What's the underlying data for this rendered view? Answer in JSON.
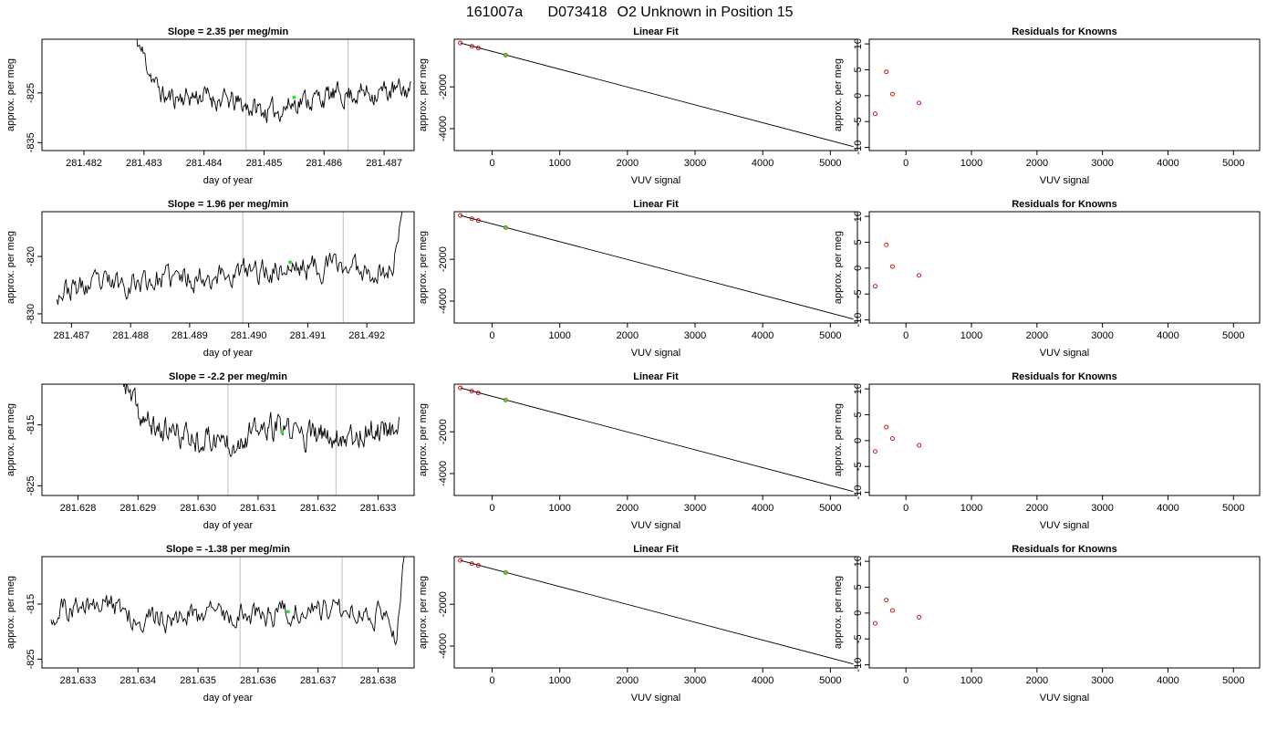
{
  "figure": {
    "title_parts": [
      "161007a",
      "D073418",
      "O2 Unknown in Position  15"
    ]
  },
  "chart_data": [
    {
      "type": "line",
      "panel": "timeseries",
      "row": 1,
      "title": "Slope =  2.35  per meg/min",
      "xlabel": "day of year",
      "ylabel": "approx. per meg",
      "xlim": [
        281.4813,
        281.4875
      ],
      "ylim": [
        -836.6,
        -814.2
      ],
      "xticks": [
        281.482,
        281.483,
        281.484,
        281.485,
        281.486,
        281.487
      ],
      "xtick_labels": [
        "281.482",
        "281.483",
        "281.484",
        "281.485",
        "281.486",
        "281.487"
      ],
      "yticks": [
        -825,
        -835
      ],
      "ytick_labels": [
        "-825",
        "-835"
      ],
      "vlines": [
        281.4847,
        281.4864
      ],
      "highlight_point": {
        "x": 281.4855,
        "y": -825.9
      },
      "series": [
        {
          "x_start": 281.4828,
          "x_end": 281.48745,
          "noise_seed": 11,
          "keyframes": [
            [
              0,
              -812
            ],
            [
              0.03,
              -816
            ],
            [
              0.06,
              -820
            ],
            [
              0.09,
              -824
            ],
            [
              0.12,
              -826
            ],
            [
              0.25,
              -825.5
            ],
            [
              0.4,
              -827.5
            ],
            [
              0.5,
              -829
            ],
            [
              0.6,
              -826.5
            ],
            [
              0.8,
              -825
            ],
            [
              1.0,
              -824.5
            ]
          ]
        }
      ],
      "grid": false
    },
    {
      "type": "line",
      "panel": "fit",
      "row": 1,
      "title": "Linear Fit",
      "xlabel": "VUV signal",
      "ylabel": "approx. per meg",
      "xlim": [
        -560,
        5400
      ],
      "ylim": [
        -5050,
        280
      ],
      "xticks": [
        0,
        1000,
        2000,
        3000,
        4000,
        5000
      ],
      "xtick_labels": [
        "0",
        "1000",
        "2000",
        "3000",
        "4000",
        "5000"
      ],
      "yticks": [
        -2000,
        -4000
      ],
      "ytick_labels": [
        "-2000",
        "-4000"
      ],
      "fit_line": {
        "x": [
          -470,
          5340
        ],
        "y": [
          100,
          -4860
        ]
      },
      "known_points": [
        {
          "x": -470,
          "y": 100
        },
        {
          "x": -300,
          "y": -55
        },
        {
          "x": -205,
          "y": -140
        },
        {
          "x": 200,
          "y": -480
        }
      ],
      "unknown_point": {
        "x": 200,
        "y": -480
      }
    },
    {
      "type": "scatter",
      "panel": "residuals",
      "row": 1,
      "title": "Residuals for Knowns",
      "xlabel": "VUV signal",
      "ylabel": "approx. per meg",
      "xlim": [
        -560,
        5400
      ],
      "ylim": [
        -10.6,
        10.9
      ],
      "xticks": [
        0,
        1000,
        2000,
        3000,
        4000,
        5000
      ],
      "xtick_labels": [
        "0",
        "1000",
        "2000",
        "3000",
        "4000",
        "5000"
      ],
      "yticks": [
        10,
        5,
        0,
        -5,
        -10
      ],
      "ytick_labels": [
        "10",
        "5",
        "0",
        "-5",
        "-10"
      ],
      "points": [
        {
          "x": -470,
          "y": -3.5
        },
        {
          "x": -300,
          "y": 4.6
        },
        {
          "x": -205,
          "y": 0.3
        },
        {
          "x": 200,
          "y": -1.4
        }
      ]
    },
    {
      "type": "line",
      "panel": "timeseries",
      "row": 2,
      "title": "Slope =  1.96  per meg/min",
      "xlabel": "day of year",
      "ylabel": "approx. per meg",
      "xlim": [
        281.4865,
        281.4928
      ],
      "ylim": [
        -831.6,
        -812.2
      ],
      "xticks": [
        281.487,
        281.488,
        281.489,
        281.49,
        281.491,
        281.492
      ],
      "xtick_labels": [
        "281.487",
        "281.488",
        "281.489",
        "281.490",
        "281.491",
        "281.492"
      ],
      "yticks": [
        -820,
        -830
      ],
      "ytick_labels": [
        "-820",
        "-830"
      ],
      "vlines": [
        281.4899,
        281.4916
      ],
      "highlight_point": {
        "x": 281.4907,
        "y": -821.0
      },
      "series": [
        {
          "x_start": 281.48675,
          "x_end": 281.49265,
          "noise_seed": 23,
          "keyframes": [
            [
              0,
              -826
            ],
            [
              0.2,
              -824.5
            ],
            [
              0.4,
              -823.5
            ],
            [
              0.6,
              -822.5
            ],
            [
              0.8,
              -821.5
            ],
            [
              0.92,
              -822.5
            ],
            [
              0.95,
              -823
            ],
            [
              0.965,
              -821
            ],
            [
              0.98,
              -817
            ],
            [
              0.99,
              -814
            ],
            [
              1.0,
              -810
            ]
          ]
        }
      ],
      "grid": false
    },
    {
      "type": "line",
      "panel": "fit",
      "row": 2,
      "title": "Linear Fit",
      "xlabel": "VUV signal",
      "ylabel": "approx. per meg",
      "xlim": [
        -560,
        5400
      ],
      "ylim": [
        -5050,
        280
      ],
      "xticks": [
        0,
        1000,
        2000,
        3000,
        4000,
        5000
      ],
      "xtick_labels": [
        "0",
        "1000",
        "2000",
        "3000",
        "4000",
        "5000"
      ],
      "yticks": [
        -2000,
        -4000
      ],
      "ytick_labels": [
        "-2000",
        "-4000"
      ],
      "fit_line": {
        "x": [
          -470,
          5340
        ],
        "y": [
          100,
          -4860
        ]
      },
      "known_points": [
        {
          "x": -470,
          "y": 100
        },
        {
          "x": -300,
          "y": -55
        },
        {
          "x": -205,
          "y": -140
        },
        {
          "x": 200,
          "y": -480
        }
      ],
      "unknown_point": {
        "x": 200,
        "y": -480
      }
    },
    {
      "type": "scatter",
      "panel": "residuals",
      "row": 2,
      "title": "Residuals for Knowns",
      "xlabel": "VUV signal",
      "ylabel": "approx. per meg",
      "xlim": [
        -560,
        5400
      ],
      "ylim": [
        -10.6,
        10.9
      ],
      "xticks": [
        0,
        1000,
        2000,
        3000,
        4000,
        5000
      ],
      "xtick_labels": [
        "0",
        "1000",
        "2000",
        "3000",
        "4000",
        "5000"
      ],
      "yticks": [
        10,
        5,
        0,
        -5,
        -10
      ],
      "ytick_labels": [
        "10",
        "5",
        "0",
        "-5",
        "-10"
      ],
      "points": [
        {
          "x": -470,
          "y": -3.5
        },
        {
          "x": -300,
          "y": 4.5
        },
        {
          "x": -205,
          "y": 0.3
        },
        {
          "x": 200,
          "y": -1.4
        }
      ]
    },
    {
      "type": "line",
      "panel": "timeseries",
      "row": 3,
      "title": "Slope =  -2.2  per meg/min",
      "xlabel": "day of year",
      "ylabel": "approx. per meg",
      "xlim": [
        281.6274,
        281.6336
      ],
      "ylim": [
        -826.6,
        -808.3
      ],
      "xticks": [
        281.628,
        281.629,
        281.63,
        281.631,
        281.632,
        281.633
      ],
      "xtick_labels": [
        "281.628",
        "281.629",
        "281.630",
        "281.631",
        "281.632",
        "281.633"
      ],
      "yticks": [
        -815,
        -825
      ],
      "ytick_labels": [
        "-815",
        "-825"
      ],
      "vlines": [
        281.6305,
        281.6323
      ],
      "highlight_point": {
        "x": 281.6314,
        "y": -816.2
      },
      "series": [
        {
          "x_start": 281.6287,
          "x_end": 281.63335,
          "noise_seed": 37,
          "keyframes": [
            [
              0,
              -806
            ],
            [
              0.03,
              -810
            ],
            [
              0.07,
              -813.5
            ],
            [
              0.12,
              -815.5
            ],
            [
              0.25,
              -817
            ],
            [
              0.4,
              -817.5
            ],
            [
              0.55,
              -815.5
            ],
            [
              0.7,
              -817
            ],
            [
              0.85,
              -816.5
            ],
            [
              1.0,
              -815
            ]
          ]
        }
      ],
      "grid": false
    },
    {
      "type": "line",
      "panel": "fit",
      "row": 3,
      "title": "Linear Fit",
      "xlabel": "VUV signal",
      "ylabel": "approx. per meg",
      "xlim": [
        -560,
        5400
      ],
      "ylim": [
        -5050,
        280
      ],
      "xticks": [
        0,
        1000,
        2000,
        3000,
        4000,
        5000
      ],
      "xtick_labels": [
        "0",
        "1000",
        "2000",
        "3000",
        "4000",
        "5000"
      ],
      "yticks": [
        -2000,
        -4000
      ],
      "ytick_labels": [
        "-2000",
        "-4000"
      ],
      "fit_line": {
        "x": [
          -470,
          5340
        ],
        "y": [
          100,
          -4860
        ]
      },
      "known_points": [
        {
          "x": -470,
          "y": 100
        },
        {
          "x": -300,
          "y": -55
        },
        {
          "x": -205,
          "y": -140
        },
        {
          "x": 200,
          "y": -480
        }
      ],
      "unknown_point": {
        "x": 200,
        "y": -480
      }
    },
    {
      "type": "scatter",
      "panel": "residuals",
      "row": 3,
      "title": "Residuals for Knowns",
      "xlabel": "VUV signal",
      "ylabel": "approx. per meg",
      "xlim": [
        -560,
        5400
      ],
      "ylim": [
        -10.6,
        10.9
      ],
      "xticks": [
        0,
        1000,
        2000,
        3000,
        4000,
        5000
      ],
      "xtick_labels": [
        "0",
        "1000",
        "2000",
        "3000",
        "4000",
        "5000"
      ],
      "yticks": [
        10,
        5,
        0,
        -5,
        -10
      ],
      "ytick_labels": [
        "10",
        "5",
        "0",
        "-5",
        "-10"
      ],
      "points": [
        {
          "x": -470,
          "y": -2.1
        },
        {
          "x": -300,
          "y": 2.6
        },
        {
          "x": -205,
          "y": 0.4
        },
        {
          "x": 200,
          "y": -0.9
        }
      ]
    },
    {
      "type": "line",
      "panel": "timeseries",
      "row": 4,
      "title": "Slope =  -1.38  per meg/min",
      "xlabel": "day of year",
      "ylabel": "approx. per meg",
      "xlim": [
        281.6324,
        281.6386
      ],
      "ylim": [
        -826.6,
        -806.4
      ],
      "xticks": [
        281.633,
        281.634,
        281.635,
        281.636,
        281.637,
        281.638
      ],
      "xtick_labels": [
        "281.633",
        "281.634",
        "281.635",
        "281.636",
        "281.637",
        "281.638"
      ],
      "yticks": [
        -815,
        -825
      ],
      "ytick_labels": [
        "-815",
        "-825"
      ],
      "vlines": [
        281.6357,
        281.6374
      ],
      "highlight_point": {
        "x": 281.6365,
        "y": -816.4
      },
      "series": [
        {
          "x_start": 281.63255,
          "x_end": 281.63845,
          "noise_seed": 51,
          "keyframes": [
            [
              0,
              -816.5
            ],
            [
              0.15,
              -815
            ],
            [
              0.3,
              -818
            ],
            [
              0.45,
              -816.5
            ],
            [
              0.6,
              -817
            ],
            [
              0.75,
              -815.5
            ],
            [
              0.9,
              -816
            ],
            [
              0.96,
              -818
            ],
            [
              0.975,
              -820.5
            ],
            [
              0.985,
              -814
            ],
            [
              1.0,
              -804
            ]
          ]
        }
      ],
      "grid": false
    },
    {
      "type": "line",
      "panel": "fit",
      "row": 4,
      "title": "Linear Fit",
      "xlabel": "VUV signal",
      "ylabel": "approx. per meg",
      "xlim": [
        -560,
        5400
      ],
      "ylim": [
        -5050,
        280
      ],
      "xticks": [
        0,
        1000,
        2000,
        3000,
        4000,
        5000
      ],
      "xtick_labels": [
        "0",
        "1000",
        "2000",
        "3000",
        "4000",
        "5000"
      ],
      "yticks": [
        -2000,
        -4000
      ],
      "ytick_labels": [
        "-2000",
        "-4000"
      ],
      "fit_line": {
        "x": [
          -470,
          5340
        ],
        "y": [
          100,
          -4860
        ]
      },
      "known_points": [
        {
          "x": -470,
          "y": 100
        },
        {
          "x": -300,
          "y": -55
        },
        {
          "x": -205,
          "y": -140
        },
        {
          "x": 200,
          "y": -480
        }
      ],
      "unknown_point": {
        "x": 200,
        "y": -480
      }
    },
    {
      "type": "scatter",
      "panel": "residuals",
      "row": 4,
      "title": "Residuals for Knowns",
      "xlabel": "VUV signal",
      "ylabel": "approx. per meg",
      "xlim": [
        -560,
        5400
      ],
      "ylim": [
        -10.6,
        10.9
      ],
      "xticks": [
        0,
        1000,
        2000,
        3000,
        4000,
        5000
      ],
      "xtick_labels": [
        "0",
        "1000",
        "2000",
        "3000",
        "4000",
        "5000"
      ],
      "yticks": [
        10,
        5,
        0,
        -5,
        -10
      ],
      "ytick_labels": [
        "10",
        "5",
        "0",
        "-5",
        "-10"
      ],
      "points": [
        {
          "x": -470,
          "y": -2.0
        },
        {
          "x": -300,
          "y": 2.5
        },
        {
          "x": -205,
          "y": 0.5
        },
        {
          "x": 200,
          "y": -0.8
        }
      ]
    }
  ],
  "colors": {
    "axes": "#000000",
    "series_line": "#000000",
    "vline": "#c8c8c8",
    "known_marker": "#cc0000",
    "unknown_marker": "#33dd33",
    "background": "#ffffff"
  }
}
